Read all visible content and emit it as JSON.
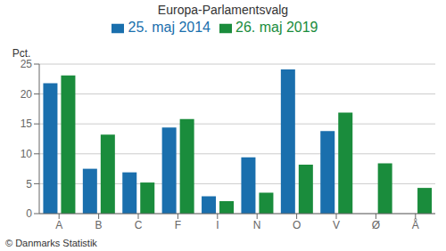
{
  "chart_data": {
    "type": "bar",
    "title": "Europa-Parlamentsvalg",
    "categories": [
      "A",
      "B",
      "C",
      "F",
      "I",
      "N",
      "O",
      "V",
      "Ø",
      "Å"
    ],
    "series": [
      {
        "name": "25. maj 2014",
        "color": "#1a6fad",
        "values": [
          21.8,
          7.5,
          6.9,
          14.4,
          2.9,
          9.4,
          24.1,
          13.8,
          0.0,
          0.0
        ]
      },
      {
        "name": "26. maj 2019",
        "color": "#1a8c3c",
        "values": [
          23.1,
          13.2,
          5.2,
          15.8,
          2.1,
          3.5,
          8.2,
          16.9,
          8.4,
          4.3
        ]
      }
    ],
    "ylabel": "Pct.",
    "ylim": [
      0,
      25
    ],
    "yticks": [
      0,
      5,
      10,
      15,
      20,
      25
    ],
    "grid": true,
    "legend": "top",
    "annotations": [
      "© Danmarks Statistik"
    ]
  }
}
